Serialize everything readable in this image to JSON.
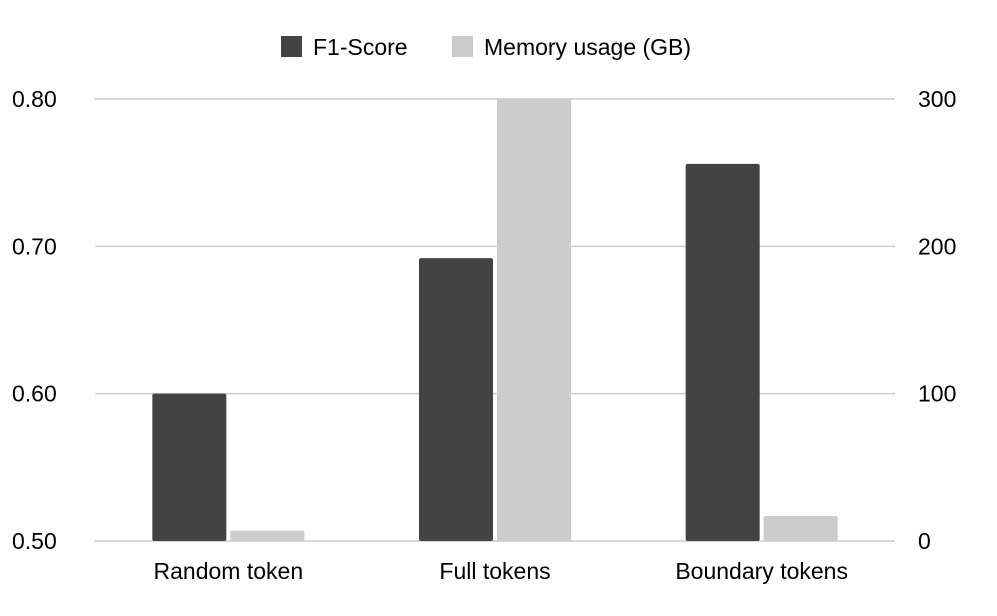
{
  "chart_data": {
    "type": "bar",
    "categories": [
      "Random token",
      "Full tokens",
      "Boundary tokens"
    ],
    "series": [
      {
        "name": "F1-Score",
        "axis": "left",
        "color": "#434343",
        "values": [
          0.6,
          0.692,
          0.756
        ]
      },
      {
        "name": "Memory usage (GB)",
        "axis": "right",
        "color": "#cccccc",
        "values": [
          7,
          300,
          17
        ]
      }
    ],
    "y_left": {
      "ticks": [
        "0.50",
        "0.60",
        "0.70",
        "0.80"
      ],
      "ylim": [
        0.5,
        0.8
      ]
    },
    "y_right": {
      "ticks": [
        "0",
        "100",
        "200",
        "300"
      ],
      "ylim": [
        0,
        300
      ]
    },
    "legend": "top-center",
    "grid": true
  }
}
